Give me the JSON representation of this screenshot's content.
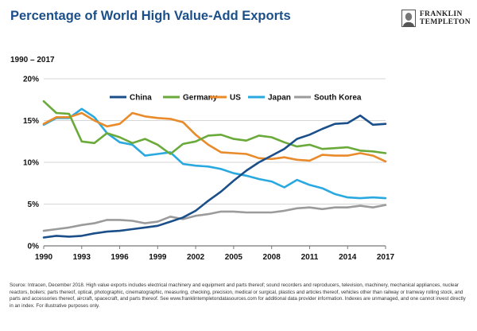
{
  "header": {
    "title": "Percentage of World High Value-Add Exports",
    "brand_line1": "FRANKLIN",
    "brand_line2": "TEMPLETON",
    "logo_icon": "franklin-portrait-icon"
  },
  "footnote": "Source: Intracen, December 2018. High value exports includes electrical machinery and equipment and parts thereof; sound recorders and reproducers, television, machinery, mechanical appliances, nuclear reactors, boilers; parts thereof, optical, photographic, cinematographic, measuring, checking, precision, medical or surgical, plastics and articles thereof, vehicles other than railway or tramway rolling stock, and parts and accessories thereof, aircraft, spacecraft, and parts thereof. See www.franklintempletondatasources.com for additional data provider information. Indexes are unmanaged, and one cannot invest directly in an index. For illustrative purposes only.",
  "chart_data": {
    "type": "line",
    "title": "Percentage of World High Value-Add Exports",
    "subtitle": "1990 – 2017",
    "xlabel": "",
    "ylabel": "",
    "x": [
      1990,
      1991,
      1992,
      1993,
      1994,
      1995,
      1996,
      1997,
      1998,
      1999,
      2000,
      2001,
      2002,
      2003,
      2004,
      2005,
      2006,
      2007,
      2008,
      2009,
      2010,
      2011,
      2012,
      2013,
      2014,
      2015,
      2016,
      2017
    ],
    "x_ticks": [
      "1990",
      "1993",
      "1996",
      "1999",
      "2002",
      "2005",
      "2008",
      "2011",
      "2014",
      "2017"
    ],
    "x_tick_values": [
      1990,
      1993,
      1996,
      1999,
      2002,
      2005,
      2008,
      2011,
      2014,
      2017
    ],
    "y_ticks": [
      "0%",
      "5%",
      "10%",
      "15%",
      "20%"
    ],
    "y_tick_values": [
      0,
      5,
      10,
      15,
      20
    ],
    "xlim": [
      1990,
      2017
    ],
    "ylim": [
      0,
      20
    ],
    "grid": "horizontal",
    "legend_position": "top",
    "series": [
      {
        "name": "China",
        "color": "#1b4f8a",
        "values": [
          1.0,
          1.2,
          1.1,
          1.2,
          1.5,
          1.7,
          1.8,
          2.0,
          2.2,
          2.4,
          2.9,
          3.4,
          4.2,
          5.4,
          6.5,
          7.8,
          9.0,
          10.0,
          10.8,
          11.6,
          12.8,
          13.3,
          14.0,
          14.6,
          14.7,
          15.6,
          14.5,
          14.6
        ]
      },
      {
        "name": "Germany",
        "color": "#6aaa3a",
        "values": [
          17.3,
          15.9,
          15.8,
          12.5,
          12.3,
          13.5,
          13.0,
          12.3,
          12.8,
          12.1,
          11.0,
          12.2,
          12.5,
          13.2,
          13.3,
          12.8,
          12.6,
          13.2,
          13.0,
          12.4,
          11.9,
          12.1,
          11.6,
          11.7,
          11.8,
          11.4,
          11.3,
          11.1
        ]
      },
      {
        "name": "US",
        "color": "#e98a2b",
        "values": [
          14.6,
          15.4,
          15.4,
          15.9,
          15.0,
          14.3,
          14.6,
          15.9,
          15.5,
          15.3,
          15.2,
          14.8,
          13.3,
          12.1,
          11.2,
          11.1,
          11.0,
          10.5,
          10.4,
          10.6,
          10.3,
          10.2,
          10.9,
          10.8,
          10.8,
          11.1,
          10.8,
          10.1
        ]
      },
      {
        "name": "Japan",
        "color": "#29a9e0",
        "values": [
          14.5,
          15.3,
          15.3,
          16.4,
          15.4,
          13.5,
          12.4,
          12.1,
          10.8,
          11.0,
          11.2,
          9.8,
          9.6,
          9.5,
          9.2,
          8.7,
          8.4,
          8.0,
          7.7,
          7.0,
          7.9,
          7.3,
          6.9,
          6.2,
          5.8,
          5.7,
          5.8,
          5.7
        ]
      },
      {
        "name": "South Korea",
        "color": "#9b9b9b",
        "values": [
          1.8,
          2.0,
          2.2,
          2.5,
          2.7,
          3.1,
          3.1,
          3.0,
          2.7,
          2.9,
          3.5,
          3.2,
          3.6,
          3.8,
          4.1,
          4.1,
          4.0,
          4.0,
          4.0,
          4.2,
          4.5,
          4.6,
          4.4,
          4.6,
          4.6,
          4.8,
          4.6,
          4.9
        ]
      }
    ]
  }
}
